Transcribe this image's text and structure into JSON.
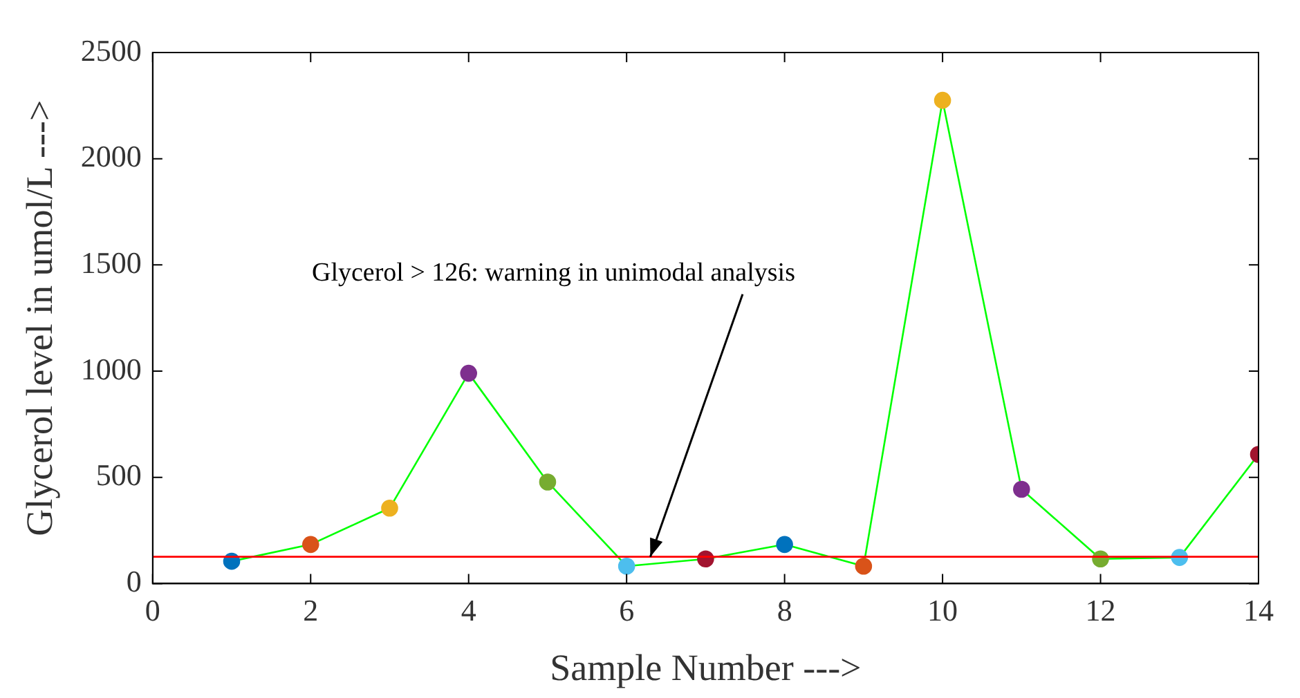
{
  "chart_data": {
    "type": "line",
    "xlabel": "Sample Number --->",
    "ylabel": "Glycerol level in umol/L --->",
    "x": [
      1,
      2,
      3,
      4,
      5,
      6,
      7,
      8,
      9,
      10,
      11,
      12,
      13,
      14
    ],
    "series": [
      {
        "color": "#00ff00",
        "colors": [
          "#0072bd",
          "#d95319",
          "#edb120",
          "#7e2f8e",
          "#77ac30",
          "#4dbeee",
          "#a2142f",
          "#0072bd",
          "#d95319",
          "#edb120",
          "#7e2f8e",
          "#77ac30",
          "#4dbeee",
          "#a2142f"
        ],
        "values": [
          105,
          184,
          355,
          990,
          478,
          82,
          116,
          184,
          82,
          2275,
          444,
          116,
          123,
          608
        ]
      }
    ],
    "xlim": [
      0,
      14
    ],
    "xticks": [
      0,
      2,
      4,
      6,
      8,
      10,
      12,
      14
    ],
    "ylim": [
      0,
      2500
    ],
    "yticks": [
      0,
      500,
      1000,
      1500,
      2000,
      2500
    ],
    "ref_lines": [
      {
        "axis": "y",
        "value": 126,
        "color": "#ff0000"
      }
    ],
    "annotations": [
      {
        "text": "Glycerol > 126: warning in unimodal analysis",
        "x": 6.3,
        "y": 126
      }
    ],
    "marker": "circle",
    "line_style": "solid"
  }
}
